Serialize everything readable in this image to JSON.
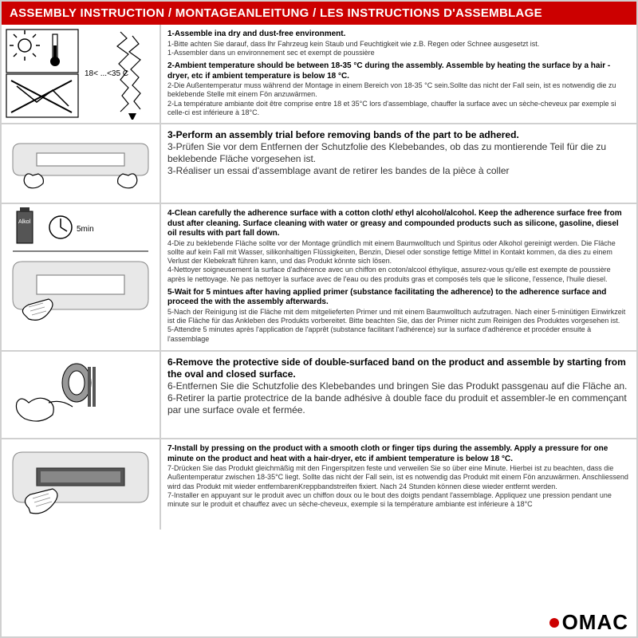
{
  "header": {
    "title": "ASSEMBLY INSTRUCTION / MONTAGEANLEITUNG / LES INSTRUCTIONS D'ASSEMBLAGE"
  },
  "colors": {
    "header_bg": "#cc0000",
    "header_text": "#ffffff",
    "border": "#d0d0d0",
    "text": "#333333",
    "bold_text": "#000000",
    "logo_red": "#cc0000"
  },
  "rows": [
    {
      "illus": {
        "type": "quad",
        "panels": [
          "sun-thermo",
          "ice-down",
          "strike-no",
          "blank"
        ],
        "label": "18< ...<35 C"
      },
      "blocks": [
        {
          "bold": true,
          "text": "1-Assemble ina dry and dust-free environment."
        },
        {
          "text": "1-Bitte achten Sie darauf, dass lhr Fahrzeug kein Staub und Feuchtigkeit wie z.B. Regen oder Schnee ausgesetzt ist."
        },
        {
          "text": "1-Assembler dans un environnement sec et exempt de poussière"
        },
        {
          "bold": true,
          "mt": true,
          "text": "2-Ambient temperature should be between 18-35 °C  during the assembly. Assemble by heating the surface by a hair -dryer, etc if ambient temperature is below 18 °C."
        },
        {
          "text": "2-Die Außentemperatur muss während der Montage in einem Bereich von 18-35 °C  sein.Sollte das nicht der Fall sein, ist es notwendig die zu beklebende Stelle mit einem Fön anzuwärmen."
        },
        {
          "text": "2-La température ambiante doit être comprise entre 18 et 35°C lors d'assemblage, chauffer la surface avec un sèche-cheveux par exemple si celle-ci est inférieure à 18°C."
        }
      ]
    },
    {
      "illus": {
        "type": "plate-hands"
      },
      "blocks": [
        {
          "bold": true,
          "lg": true,
          "text": "3-Perform an assembly trial before removing bands of the part to be adhered."
        },
        {
          "lg": true,
          "text": "3-Prüfen Sie vor dem Entfernen der Schutzfolie des Klebebandes, ob das zu montierende Teil für die zu beklebende Fläche vorgesehen ist."
        },
        {
          "lg": true,
          "text": "3-Réaliser un essai d'assemblage avant de retirer les bandes de la pièce à coller"
        }
      ]
    },
    {
      "illus": {
        "type": "clean-primer",
        "label1": "Alkol",
        "label2": "5min"
      },
      "blocks": [
        {
          "bold": true,
          "text": "4-Clean carefully the adherence surface with a cotton cloth/ ethyl alcohol/alcohol. Keep the adherence surface free from dust after cleaning. Surface cleaning with water or greasy and compounded products such as silicone, gasoline, diesel oil results with part fall down."
        },
        {
          "text": "4-Die zu beklebende Fläche sollte vor der Montage gründlich mit einem Baumwolltuch und Spiritus oder Alkohol gereinigt werden. Die Fläche sollte auf kein Fall mit Wasser, silikonhaltigen Flüssigkeiten, Benzin, Diesel oder sonstige fettige Mittel in Kontakt kommen, da dies zu einem Verlust der Klebekraft führen kann, und das Produkt könnte sich lösen."
        },
        {
          "text": "4-Nettoyer soigneusement la surface d'adhérence avec un chiffon en coton/alcool éthylique, assurez-vous qu'elle est exempte de poussière après le nettoyage. Ne pas nettoyer la surface avec de l'eau ou des produits gras et composés tels que le silicone, l'essence, l'huile diesel."
        },
        {
          "bold": true,
          "mt": true,
          "text": "5-Wait for 5 mintues after having applied primer (substance facilitating the adherence) to the adherence surface and proceed the with the assembly afterwards."
        },
        {
          "text": "5-Nach der Reinigung ist die Fläche mit dem mitgelieferten Primer und mit einem Baumwolltuch aufzutragen. Nach einer 5-minütigen Einwirkzeit ist die Fläche für das Ankleben des Produkts vorbereitet. Bitte beachten Sie, das der Primer nicht zum Reinigen des Produktes vorgesehen ist."
        },
        {
          "text": "5-Attendre 5 minutes après l'application de l'apprêt (substance facilitant l'adhérence) sur la surface d'adhérence et procéder ensuite à l'assemblage"
        }
      ]
    },
    {
      "illus": {
        "type": "peel-tape"
      },
      "blocks": [
        {
          "bold": true,
          "lg": true,
          "text": "6-Remove the protective side of double-surfaced band on the product and assemble by starting from the oval and closed surface."
        },
        {
          "lg": true,
          "text": "6-Entfernen Sie die Schutzfolie des Klebebandes und bringen Sie das Produkt passgenau auf die Fläche an."
        },
        {
          "lg": true,
          "text": "6-Retirer la partie protectrice de la bande adhésive à double face du produit et assembler-le en commençant par une surface ovale et fermée."
        }
      ]
    },
    {
      "illus": {
        "type": "press-install"
      },
      "blocks": [
        {
          "bold": true,
          "text": "7-Install by pressing on the product with a smooth cloth or finger tips during the assembly. Apply a pressure for one minute on the product and heat with a hair-dryer, etc if ambient temperature is below 18 °C."
        },
        {
          "text": "7-Drücken Sie das Produkt gleichmäßig mit den Fingerspitzen feste und verweilen Sie so über eine Minute. Hierbei ist zu beachten, dass die Außentemperatur zwischen 18-35°C liegt. Sollte das nicht der Fall sein, ist es notwendig das Produkt mit einem Fön anzuwärmen. Anschliessend wird das Produkt mit wieder entfernbarenKreppbandstreifen fixiert. Nach 24 Stunden können diese wieder entfernt werden."
        },
        {
          "text": "7-Installer en appuyant sur le produit avec un chiffon doux ou le bout des doigts pendant l'assemblage. Appliquez une pression pendant une minute sur le produit et chauffez avec un sèche-cheveux, exemple si la température ambiante est inférieure à 18°C"
        }
      ]
    }
  ],
  "footer": {
    "logo_text": "OMAC"
  }
}
